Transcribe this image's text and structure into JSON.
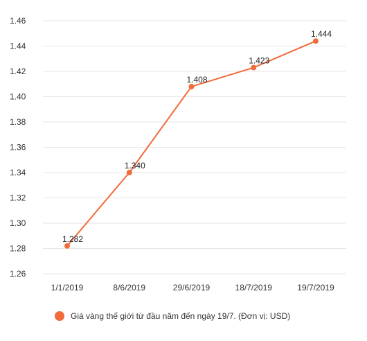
{
  "chart_data": {
    "type": "line",
    "categories": [
      "1/1/2019",
      "8/6/2019",
      "29/6/2019",
      "18/7/2019",
      "19/7/2019"
    ],
    "series": [
      {
        "name": "Giá vàng thế giới từ đầu năm đến ngày 19/7. (Đơn vị: USD)",
        "values": [
          1.282,
          1.34,
          1.408,
          1.423,
          1.444
        ],
        "data_labels": [
          "1.282",
          "1.340",
          "1.408",
          "1.423",
          "1.444"
        ],
        "color": "#f26b3a"
      }
    ],
    "y_ticks": [
      "1.26",
      "1.28",
      "1.30",
      "1.32",
      "1.34",
      "1.36",
      "1.38",
      "1.40",
      "1.42",
      "1.44",
      "1.46"
    ],
    "ylim": [
      1.26,
      1.46
    ],
    "grid": true,
    "legend_position": "bottom",
    "gridline_color": "#e6e6e6"
  }
}
